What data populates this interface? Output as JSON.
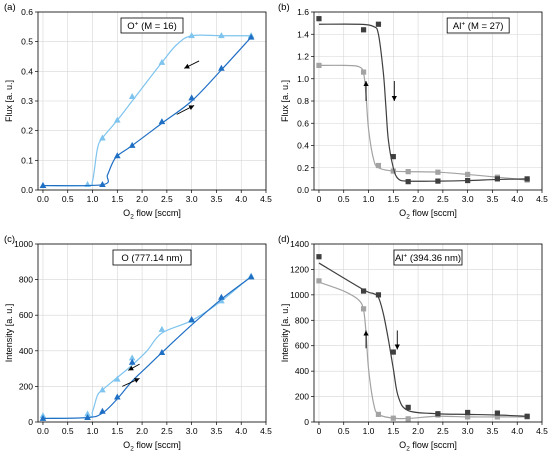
{
  "colors": {
    "light_blue": "#7ec4ee",
    "dark_blue": "#1f6fc4",
    "light_gray": "#a3a3a3",
    "dark_gray": "#3f3f3f"
  },
  "chart_data": [
    {
      "panel": "(a)",
      "type": "line",
      "legend": {
        "text_main": "O",
        "sup": "+",
        "text_tail": " (M = 16)",
        "placement": "top-center"
      },
      "xlabel": {
        "main": "O",
        "sub": "2",
        "tail": " flow [sccm]"
      },
      "ylabel": "Flux [a. u.]",
      "xlim": [
        -0.1,
        4.5
      ],
      "ylim": [
        0,
        0.6
      ],
      "xticks": [
        0.0,
        0.5,
        1.0,
        1.5,
        2.0,
        2.5,
        3.0,
        3.5,
        4.0,
        4.5
      ],
      "yticks": [
        0.0,
        0.1,
        0.2,
        0.3,
        0.4,
        0.5,
        0.6
      ],
      "xtick_labels": [
        "0.0",
        "0.5",
        "1.0",
        "1.5",
        "2.0",
        "2.5",
        "3.0",
        "3.5",
        "4.0",
        "4.5"
      ],
      "ytick_labels": [
        "0.0",
        "0.1",
        "0.2",
        "0.3",
        "0.4",
        "0.5",
        "0.6"
      ],
      "grid": true,
      "series": [
        {
          "color": "#7ec4ee",
          "marker": "triangle",
          "x": [
            0,
            0.9,
            1.2,
            1.5,
            1.8,
            2.4,
            3.0,
            3.6,
            4.2
          ],
          "y": [
            0.015,
            0.018,
            0.175,
            0.235,
            0.315,
            0.43,
            0.52,
            0.52,
            0.52
          ],
          "curve_x": [
            0,
            0.9,
            1.0,
            1.1,
            1.2,
            1.5,
            1.8,
            2.4,
            2.7,
            3.0,
            3.6,
            4.2
          ],
          "curve_y": [
            0.015,
            0.015,
            0.03,
            0.14,
            0.175,
            0.235,
            0.3,
            0.43,
            0.49,
            0.52,
            0.52,
            0.52
          ]
        },
        {
          "color": "#1f6fc4",
          "marker": "triangle",
          "x": [
            0,
            1.2,
            1.5,
            1.8,
            2.4,
            3.0,
            3.6,
            4.2
          ],
          "y": [
            0.015,
            0.018,
            0.115,
            0.15,
            0.23,
            0.31,
            0.41,
            0.515
          ],
          "curve_x": [
            0,
            1.2,
            1.3,
            1.4,
            1.5,
            1.8,
            2.4,
            3.0,
            3.6,
            4.2
          ],
          "curve_y": [
            0.015,
            0.018,
            0.05,
            0.09,
            0.115,
            0.15,
            0.225,
            0.3,
            0.405,
            0.515
          ]
        }
      ],
      "arrows": [
        {
          "x1": 3.15,
          "y1": 0.435,
          "x2": 2.85,
          "y2": 0.41
        },
        {
          "x1": 2.7,
          "y1": 0.255,
          "x2": 3.05,
          "y2": 0.285
        }
      ]
    },
    {
      "panel": "(b)",
      "type": "line",
      "legend": {
        "text_main": "Al",
        "sup": "+",
        "text_tail": " (M = 27)",
        "placement": "top-right"
      },
      "xlabel": {
        "main": "O",
        "sub": "2",
        "tail": " flow [sccm]"
      },
      "ylabel": "Flux [a. u.]",
      "xlim": [
        -0.1,
        4.5
      ],
      "ylim": [
        0,
        1.6
      ],
      "xticks": [
        0,
        0.5,
        1.0,
        1.5,
        2.0,
        2.5,
        3.0,
        3.5,
        4.0,
        4.5
      ],
      "yticks": [
        0.0,
        0.2,
        0.4,
        0.6,
        0.8,
        1.0,
        1.2,
        1.4,
        1.6
      ],
      "xtick_labels": [
        "0",
        "0.5",
        "1.0",
        "1.5",
        "2.0",
        "2.5",
        "3.0",
        "3.5",
        "4.0",
        "4.5"
      ],
      "ytick_labels": [
        "0.0",
        "0.2",
        "0.4",
        "0.6",
        "0.8",
        "1.0",
        "1.2",
        "1.4",
        "1.6"
      ],
      "grid": true,
      "series": [
        {
          "color": "#a3a3a3",
          "marker": "square",
          "x": [
            0,
            0.9,
            1.2,
            1.5,
            1.8,
            2.4,
            3.0,
            3.6,
            4.2
          ],
          "y": [
            1.12,
            1.06,
            0.22,
            0.17,
            0.165,
            0.16,
            0.14,
            0.115,
            0.09
          ],
          "curve_x": [
            0,
            0.5,
            0.8,
            0.9,
            0.95,
            1.0,
            1.1,
            1.2,
            1.5,
            1.8,
            2.4,
            3.0,
            3.6,
            4.2
          ],
          "curve_y": [
            1.12,
            1.12,
            1.11,
            1.05,
            0.85,
            0.55,
            0.28,
            0.2,
            0.17,
            0.165,
            0.16,
            0.14,
            0.115,
            0.09
          ]
        },
        {
          "color": "#3f3f3f",
          "marker": "square",
          "x": [
            0,
            0.9,
            1.2,
            1.5,
            1.8,
            2.4,
            3.0,
            3.6,
            4.2
          ],
          "y": [
            1.54,
            1.44,
            1.49,
            0.3,
            0.075,
            0.08,
            0.085,
            0.1,
            0.1
          ],
          "curve_x": [
            0,
            0.8,
            1.1,
            1.2,
            1.3,
            1.35,
            1.4,
            1.5,
            1.6,
            1.8,
            2.4,
            3.0,
            3.6,
            4.2
          ],
          "curve_y": [
            1.49,
            1.49,
            1.47,
            1.4,
            1.05,
            0.75,
            0.45,
            0.2,
            0.1,
            0.08,
            0.08,
            0.085,
            0.095,
            0.1
          ]
        }
      ],
      "arrows": [
        {
          "x1": 0.95,
          "y1": 0.8,
          "x2": 0.95,
          "y2": 0.98
        },
        {
          "x1": 1.52,
          "y1": 0.98,
          "x2": 1.52,
          "y2": 0.8
        }
      ]
    },
    {
      "panel": "(c)",
      "type": "line",
      "legend": {
        "text_main": "O (777.14 nm)",
        "sup": "",
        "text_tail": "",
        "placement": "top-center"
      },
      "xlabel": {
        "main": "O",
        "sub": "2",
        "tail": " flow [sccm]"
      },
      "ylabel": "Intensity [a. u.]",
      "xlim": [
        -0.1,
        4.5
      ],
      "ylim": [
        0,
        1000
      ],
      "xticks": [
        0.0,
        0.5,
        1.0,
        1.5,
        2.0,
        2.5,
        3.0,
        3.5,
        4.0,
        4.5
      ],
      "yticks": [
        0,
        200,
        400,
        600,
        800,
        1000
      ],
      "xtick_labels": [
        "0.0",
        "0.5",
        "1.0",
        "1.5",
        "2.0",
        "2.5",
        "3.0",
        "3.5",
        "4.0",
        "4.5"
      ],
      "ytick_labels": [
        "0",
        "200",
        "400",
        "600",
        "800",
        "1000"
      ],
      "grid": true,
      "series": [
        {
          "color": "#7ec4ee",
          "marker": "triangle",
          "x": [
            0,
            0.9,
            1.2,
            1.5,
            1.8,
            2.4,
            3.0,
            3.6,
            4.2
          ],
          "y": [
            35,
            45,
            180,
            240,
            360,
            520,
            570,
            680,
            820
          ],
          "curve_x": [
            0,
            0.9,
            1.0,
            1.1,
            1.2,
            1.5,
            1.8,
            2.1,
            2.4,
            3.0,
            3.6,
            4.2
          ],
          "curve_y": [
            20,
            25,
            60,
            150,
            180,
            250,
            320,
            400,
            500,
            570,
            680,
            820
          ]
        },
        {
          "color": "#1f6fc4",
          "marker": "triangle",
          "x": [
            0,
            0.9,
            1.2,
            1.5,
            1.8,
            2.4,
            3.0,
            3.6,
            4.2
          ],
          "y": [
            20,
            25,
            60,
            140,
            335,
            390,
            575,
            700,
            815
          ],
          "curve_x": [
            0,
            0.9,
            1.2,
            1.5,
            1.8,
            2.1,
            2.4,
            3.0,
            3.6,
            4.2
          ],
          "curve_y": [
            20,
            25,
            50,
            130,
            230,
            310,
            390,
            545,
            690,
            815
          ]
        }
      ],
      "arrows": [
        {
          "x1": 1.95,
          "y1": 325,
          "x2": 1.72,
          "y2": 290
        },
        {
          "x1": 1.6,
          "y1": 200,
          "x2": 1.95,
          "y2": 245
        }
      ]
    },
    {
      "panel": "(d)",
      "type": "line",
      "legend": {
        "text_main": "Al",
        "sup": "+",
        "text_tail": " (394.36 nm)",
        "placement": "top-center"
      },
      "xlabel": {
        "main": "O",
        "sub": "2",
        "tail": " flow [sccm]"
      },
      "ylabel": "Intensity [a. u.]",
      "xlim": [
        -0.1,
        4.5
      ],
      "ylim": [
        0,
        1400
      ],
      "xticks": [
        0,
        0.5,
        1.0,
        1.5,
        2.0,
        2.5,
        3.0,
        3.5,
        4.0,
        4.5
      ],
      "yticks": [
        0,
        200,
        400,
        600,
        800,
        1000,
        1200,
        1400
      ],
      "xtick_labels": [
        "0",
        "0.5",
        "1.0",
        "1.5",
        "2.0",
        "2.5",
        "3.0",
        "3.5",
        "4.0",
        "4.5"
      ],
      "ytick_labels": [
        "0",
        "200",
        "400",
        "600",
        "800",
        "1000",
        "1200",
        "1400"
      ],
      "grid": true,
      "series": [
        {
          "color": "#a3a3a3",
          "marker": "square",
          "x": [
            0,
            0.9,
            1.2,
            1.5,
            1.8,
            2.4,
            3.0,
            3.6,
            4.2
          ],
          "y": [
            1110,
            890,
            60,
            30,
            25,
            55,
            40,
            40,
            40
          ],
          "curve_x": [
            0,
            0.5,
            0.8,
            0.9,
            0.95,
            1.0,
            1.1,
            1.2,
            1.5,
            1.8,
            2.4,
            3.0,
            3.6,
            4.2
          ],
          "curve_y": [
            1100,
            1030,
            960,
            880,
            700,
            420,
            150,
            60,
            30,
            28,
            45,
            40,
            40,
            40
          ]
        },
        {
          "color": "#3f3f3f",
          "marker": "square",
          "x": [
            0,
            0.9,
            1.2,
            1.5,
            1.8,
            2.4,
            3.0,
            3.6,
            4.2
          ],
          "y": [
            1300,
            1030,
            1000,
            550,
            115,
            65,
            75,
            70,
            45
          ],
          "curve_x": [
            0,
            0.9,
            1.1,
            1.2,
            1.3,
            1.4,
            1.5,
            1.6,
            1.8,
            2.4,
            3.0,
            3.6,
            4.2
          ],
          "curve_y": [
            1250,
            1040,
            1010,
            980,
            850,
            650,
            420,
            200,
            90,
            65,
            60,
            55,
            45
          ]
        }
      ],
      "arrows": [
        {
          "x1": 0.95,
          "y1": 580,
          "x2": 0.95,
          "y2": 720
        },
        {
          "x1": 1.58,
          "y1": 720,
          "x2": 1.58,
          "y2": 570
        }
      ]
    }
  ]
}
